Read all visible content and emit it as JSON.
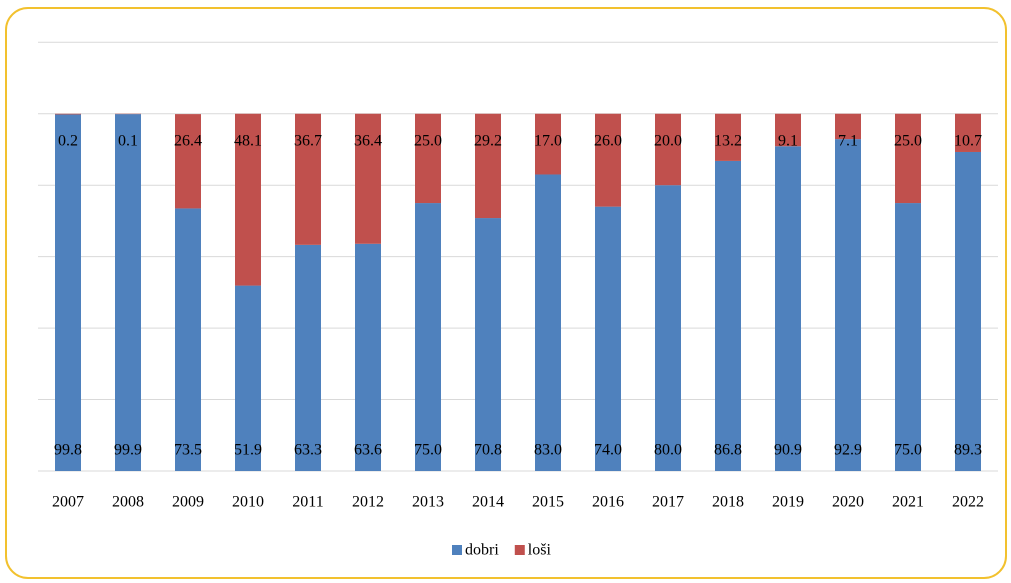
{
  "chart_data": {
    "type": "stacked-bar",
    "categories": [
      "2007",
      "2008",
      "2009",
      "2010",
      "2011",
      "2012",
      "2013",
      "2014",
      "2015",
      "2016",
      "2017",
      "2018",
      "2019",
      "2020",
      "2021",
      "2022"
    ],
    "series": [
      {
        "name": "dobri",
        "color": "#4f81bd",
        "values": [
          99.8,
          99.9,
          73.5,
          51.9,
          63.3,
          63.6,
          75.0,
          70.8,
          83.0,
          74.0,
          80.0,
          86.8,
          90.9,
          92.9,
          75.0,
          89.3
        ],
        "value_labels": [
          "99.8",
          "99.9",
          "73.5",
          "51.9",
          "63.3",
          "63.6",
          "75.0",
          "70.8",
          "83.0",
          "74.0",
          "80.0",
          "86.8",
          "90.9",
          "92.9",
          "75.0",
          "89.3"
        ]
      },
      {
        "name": "loši",
        "color": "#c0504d",
        "values": [
          0.2,
          0.1,
          26.4,
          48.1,
          36.7,
          36.4,
          25.0,
          29.2,
          17.0,
          26.0,
          20.0,
          13.2,
          9.1,
          7.1,
          25.0,
          10.7
        ],
        "value_labels": [
          "0.2",
          "0.1",
          "26.4",
          "48.1",
          "36.7",
          "36.4",
          "25.0",
          "29.2",
          "17.0",
          "26.0",
          "20.0",
          "13.2",
          "9.1",
          "7.1",
          "25.0",
          "10.7"
        ]
      }
    ],
    "ylim": [
      0,
      120
    ],
    "yticks": [
      0,
      20,
      40,
      60,
      80,
      100,
      120
    ],
    "grid": true,
    "legend": "bottom"
  }
}
